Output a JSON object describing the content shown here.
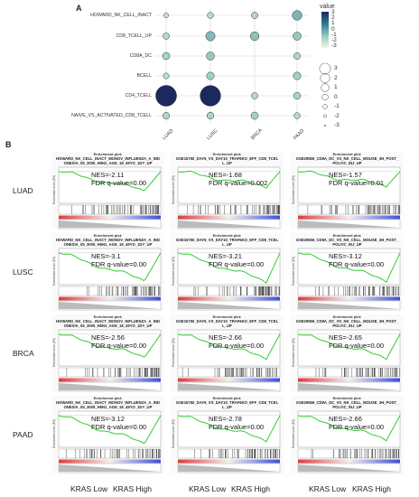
{
  "panel_a": {
    "letter": "A",
    "legend_title": "value",
    "color_ticks": [
      "3",
      "2",
      "1",
      "0",
      "-1",
      "-2",
      "-3"
    ],
    "size_ticks": [
      "3",
      "2",
      "1",
      "0",
      "-1",
      "-2",
      "-3"
    ]
  },
  "panel_b": {
    "letter": "B",
    "x_low": "KRAS Low",
    "x_high": "KRAS High",
    "header": "Enrichment plot:",
    "ylabel": "Enrichment score (ES)"
  },
  "chart_data": [
    {
      "type": "scatter",
      "rows": [
        "HOWARD_NK_CELL_INACT",
        "CD8_TCELL_UP",
        "CD8A_DC",
        "BCELL",
        "CD4_TCELL",
        "NAIVE_VS_ACTIVATED_CD8_TCELL"
      ],
      "cols": [
        "LUAD",
        "LUSC",
        "BRCA",
        "PAAD"
      ],
      "values": [
        [
          -2.11,
          -1.68,
          -1.57,
          -0.5
        ],
        [
          -1.6,
          -0.6,
          -0.8,
          -1.0
        ],
        [
          -1.3,
          -1.0,
          null,
          -1.5
        ],
        [
          -1.8,
          -1.2,
          null,
          -1.2
        ],
        [
          3.2,
          3.1,
          -1.6,
          -1.4
        ],
        [
          -1.5,
          -1.4,
          -1.3,
          -1.7
        ]
      ],
      "legend": {
        "color_range": [
          -3,
          3
        ],
        "size_range": [
          -3,
          3
        ]
      }
    },
    {
      "type": "line",
      "tumors": [
        "LUAD",
        "LUSC",
        "BRCA",
        "PAAD"
      ],
      "gene_sets": [
        "HOWARD_NK_CELL_INACT_MONOV_INFLUENZA_A_IND\nONESIA_05_2005_H5N1_AGE_18_49YO_1DY_UP",
        "GSE15750_DAY6_VS_DAY10_TRAF6KO_EFF_CD8_TCEL\nL_UP",
        "GSE29556_CD8A_DC_VS_NK_CELL_MOUSE_3H_POST_\nPOLYIC_INJ_UP"
      ],
      "nes": [
        [
          "-2.11",
          "-1.68",
          "-1.57"
        ],
        [
          "-3.1",
          "-3.21",
          "-3.12"
        ],
        [
          "-2.56",
          "-2.66",
          "-2.65"
        ],
        [
          "-3.12",
          "-2.78",
          "-2.66"
        ]
      ],
      "fdr": [
        [
          "0.00",
          "0.002",
          "0.01"
        ],
        [
          "0.00",
          "0.00",
          "0.00"
        ],
        [
          "0.00",
          "0.00",
          "0.00"
        ],
        [
          "0.00",
          "0.00",
          "0.00"
        ]
      ],
      "nes_prefix": "NES=",
      "fdr_prefix": "FDR q-value="
    }
  ]
}
